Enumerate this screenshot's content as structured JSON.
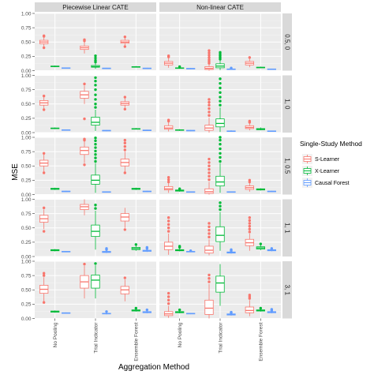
{
  "chart_data": {
    "type": "boxplot",
    "xlabel": "Aggregation Method",
    "ylabel": "MSE",
    "ylim": [
      0,
      1
    ],
    "yticks": [
      "0.00",
      "0.25",
      "0.50",
      "0.75",
      "1.00"
    ],
    "grid": true,
    "legend_placement": "right",
    "columns": [
      "Piecewise Linear CATE",
      "Non-linear CATE"
    ],
    "rows": [
      "0.5_0",
      "1_0",
      "1_0.5",
      "1_1",
      "3_1"
    ],
    "row_labels": [
      "0.5, 0",
      "1, 0",
      "1, 0.5",
      "1, 1",
      "3, 1"
    ],
    "categories": [
      "No Pooling",
      "Trial Indicator",
      "Ensemble Forest"
    ],
    "legend": {
      "title": "Single-Study Method",
      "entries": [
        {
          "name": "S-Learner",
          "color": "#F8766D"
        },
        {
          "name": "X-Learner",
          "color": "#00BA38"
        },
        {
          "name": "Causal Forest",
          "color": "#619CFF"
        }
      ]
    },
    "panels": [
      {
        "col": 0,
        "row": 0,
        "boxes": [
          [
            0.47,
            0.5,
            0.53,
            0.42,
            0.58,
            [
              0.4,
              0.6,
              0.61
            ]
          ],
          [
            0.07,
            0.075,
            0.08,
            0.06,
            0.09,
            []
          ],
          [
            0.04,
            0.045,
            0.05,
            0.035,
            0.055,
            []
          ],
          [
            0.37,
            0.4,
            0.43,
            0.3,
            0.5,
            [
              0.52,
              0.54
            ]
          ],
          [
            0.06,
            0.07,
            0.09,
            0.03,
            0.13,
            [
              0.15,
              0.18,
              0.22,
              0.26
            ]
          ],
          [
            0.035,
            0.04,
            0.045,
            0.03,
            0.05,
            []
          ],
          [
            0.48,
            0.5,
            0.53,
            0.44,
            0.57,
            [
              0.42,
              0.59
            ]
          ],
          [
            0.06,
            0.065,
            0.07,
            0.055,
            0.08,
            []
          ],
          [
            0.035,
            0.04,
            0.045,
            0.03,
            0.05,
            []
          ]
        ]
      },
      {
        "col": 1,
        "row": 0,
        "boxes": [
          [
            0.1,
            0.13,
            0.16,
            0.05,
            0.22,
            [
              0.24,
              0.26
            ]
          ],
          [
            0.04,
            0.045,
            0.05,
            0.03,
            0.06,
            [
              0.07
            ]
          ],
          [
            0.03,
            0.035,
            0.04,
            0.025,
            0.045,
            []
          ],
          [
            0.02,
            0.04,
            0.07,
            0.0,
            0.11,
            [
              0.13,
              0.16,
              0.19,
              0.23,
              0.27,
              0.31,
              0.35
            ]
          ],
          [
            0.05,
            0.08,
            0.12,
            0.01,
            0.18,
            [
              0.2,
              0.23,
              0.26,
              0.29,
              0.32
            ]
          ],
          [
            0.02,
            0.025,
            0.03,
            0.015,
            0.04,
            [
              0.045
            ]
          ],
          [
            0.1,
            0.13,
            0.16,
            0.06,
            0.21,
            [
              0.23
            ]
          ],
          [
            0.05,
            0.055,
            0.06,
            0.045,
            0.07,
            []
          ],
          [
            0.02,
            0.025,
            0.03,
            0.015,
            0.035,
            []
          ]
        ]
      },
      {
        "col": 0,
        "row": 1,
        "boxes": [
          [
            0.48,
            0.52,
            0.56,
            0.42,
            0.62,
            [
              0.4,
              0.64
            ]
          ],
          [
            0.07,
            0.075,
            0.08,
            0.06,
            0.09,
            []
          ],
          [
            0.04,
            0.045,
            0.05,
            0.035,
            0.055,
            []
          ],
          [
            0.6,
            0.66,
            0.72,
            0.5,
            0.82,
            [
              0.24,
              0.85
            ]
          ],
          [
            0.13,
            0.18,
            0.27,
            0.03,
            0.4,
            [
              0.44,
              0.5,
              0.58,
              0.66,
              0.75,
              0.83,
              0.9,
              0.96
            ]
          ],
          [
            0.03,
            0.035,
            0.04,
            0.025,
            0.045,
            []
          ],
          [
            0.48,
            0.51,
            0.54,
            0.43,
            0.6,
            [
              0.41,
              0.62
            ]
          ],
          [
            0.06,
            0.065,
            0.07,
            0.055,
            0.08,
            []
          ],
          [
            0.035,
            0.04,
            0.045,
            0.03,
            0.05,
            []
          ]
        ]
      },
      {
        "col": 1,
        "row": 1,
        "boxes": [
          [
            0.06,
            0.08,
            0.12,
            0.02,
            0.18,
            [
              0.2,
              0.22
            ]
          ],
          [
            0.04,
            0.045,
            0.05,
            0.03,
            0.06,
            []
          ],
          [
            0.03,
            0.035,
            0.04,
            0.025,
            0.045,
            []
          ],
          [
            0.04,
            0.08,
            0.13,
            0.0,
            0.26,
            [
              0.3,
              0.36,
              0.42,
              0.48,
              0.53,
              0.58
            ]
          ],
          [
            0.1,
            0.16,
            0.24,
            0.01,
            0.44,
            [
              0.48,
              0.55,
              0.62,
              0.7,
              0.78,
              0.86,
              0.94
            ]
          ],
          [
            0.02,
            0.025,
            0.03,
            0.015,
            0.04,
            []
          ],
          [
            0.07,
            0.09,
            0.12,
            0.04,
            0.16,
            [
              0.18,
              0.2
            ]
          ],
          [
            0.05,
            0.06,
            0.07,
            0.04,
            0.09,
            []
          ],
          [
            0.02,
            0.025,
            0.03,
            0.015,
            0.035,
            []
          ]
        ]
      },
      {
        "col": 0,
        "row": 2,
        "boxes": [
          [
            0.5,
            0.55,
            0.6,
            0.4,
            0.7,
            [
              0.38,
              0.72
            ]
          ],
          [
            0.09,
            0.1,
            0.11,
            0.08,
            0.12,
            []
          ],
          [
            0.05,
            0.055,
            0.06,
            0.045,
            0.065,
            []
          ],
          [
            0.7,
            0.77,
            0.83,
            0.55,
            0.93,
            [
              0.52,
              0.95,
              0.97
            ]
          ],
          [
            0.18,
            0.25,
            0.34,
            0.03,
            0.55,
            [
              0.58,
              0.64,
              0.7,
              0.76,
              0.82,
              0.88,
              0.94,
              0.99
            ]
          ],
          [
            0.04,
            0.045,
            0.05,
            0.035,
            0.055,
            []
          ],
          [
            0.5,
            0.56,
            0.62,
            0.4,
            0.75,
            [
              0.38,
              0.78,
              0.84,
              0.9,
              0.95
            ]
          ],
          [
            0.09,
            0.1,
            0.11,
            0.08,
            0.12,
            []
          ],
          [
            0.05,
            0.055,
            0.06,
            0.045,
            0.065,
            []
          ]
        ]
      },
      {
        "col": 1,
        "row": 2,
        "boxes": [
          [
            0.08,
            0.1,
            0.14,
            0.03,
            0.2,
            [
              0.22,
              0.26,
              0.3
            ]
          ],
          [
            0.06,
            0.07,
            0.08,
            0.05,
            0.09,
            [
              0.1
            ]
          ],
          [
            0.04,
            0.045,
            0.05,
            0.035,
            0.055,
            []
          ],
          [
            0.02,
            0.05,
            0.1,
            0.0,
            0.22,
            [
              0.26,
              0.32,
              0.38,
              0.44,
              0.5,
              0.56,
              0.62
            ]
          ],
          [
            0.15,
            0.22,
            0.32,
            0.03,
            0.55,
            [
              0.58,
              0.65,
              0.72,
              0.8,
              0.88,
              0.95,
              1.0
            ]
          ],
          [
            0.04,
            0.045,
            0.05,
            0.035,
            0.055,
            []
          ],
          [
            0.09,
            0.12,
            0.15,
            0.05,
            0.2,
            [
              0.22,
              0.25
            ]
          ],
          [
            0.08,
            0.09,
            0.1,
            0.07,
            0.11,
            []
          ],
          [
            0.05,
            0.055,
            0.06,
            0.045,
            0.065,
            []
          ]
        ]
      },
      {
        "col": 0,
        "row": 3,
        "boxes": [
          [
            0.6,
            0.66,
            0.72,
            0.48,
            0.82,
            [
              0.44,
              0.85
            ]
          ],
          [
            0.1,
            0.11,
            0.12,
            0.09,
            0.13,
            []
          ],
          [
            0.08,
            0.085,
            0.09,
            0.075,
            0.095,
            []
          ],
          [
            0.82,
            0.87,
            0.91,
            0.72,
            1.0,
            []
          ],
          [
            0.35,
            0.44,
            0.55,
            0.12,
            0.8,
            [
              0.84,
              0.9
            ]
          ],
          [
            0.07,
            0.08,
            0.09,
            0.06,
            0.1,
            [
              0.12,
              0.14
            ]
          ],
          [
            0.62,
            0.69,
            0.75,
            0.5,
            0.85,
            [
              0.47
            ]
          ],
          [
            0.12,
            0.14,
            0.16,
            0.1,
            0.19,
            [
              0.21
            ]
          ],
          [
            0.09,
            0.1,
            0.11,
            0.08,
            0.12,
            [
              0.14,
              0.16
            ]
          ]
        ]
      },
      {
        "col": 1,
        "row": 3,
        "boxes": [
          [
            0.12,
            0.18,
            0.25,
            0.03,
            0.4,
            [
              0.44,
              0.5,
              0.56,
              0.62,
              0.68
            ]
          ],
          [
            0.1,
            0.11,
            0.12,
            0.09,
            0.14,
            [
              0.16,
              0.18
            ]
          ],
          [
            0.08,
            0.085,
            0.09,
            0.075,
            0.095,
            [
              0.1
            ]
          ],
          [
            0.06,
            0.11,
            0.18,
            0.02,
            0.3,
            [
              0.34,
              0.4,
              0.46,
              0.52,
              0.58
            ]
          ],
          [
            0.26,
            0.37,
            0.52,
            0.1,
            0.78,
            [
              0.82,
              0.88,
              0.94
            ]
          ],
          [
            0.06,
            0.07,
            0.08,
            0.05,
            0.09,
            [
              0.1,
              0.12
            ]
          ],
          [
            0.19,
            0.24,
            0.3,
            0.1,
            0.4,
            [
              0.43,
              0.48,
              0.53,
              0.58,
              0.63,
              0.68
            ]
          ],
          [
            0.13,
            0.15,
            0.17,
            0.11,
            0.2,
            [
              0.22
            ]
          ],
          [
            0.1,
            0.11,
            0.12,
            0.09,
            0.13,
            [
              0.14
            ]
          ]
        ]
      },
      {
        "col": 0,
        "row": 4,
        "boxes": [
          [
            0.44,
            0.51,
            0.58,
            0.3,
            0.72,
            [
              0.28,
              0.75,
              0.79
            ]
          ],
          [
            0.11,
            0.12,
            0.13,
            0.1,
            0.14,
            []
          ],
          [
            0.09,
            0.095,
            0.1,
            0.085,
            0.105,
            []
          ],
          [
            0.53,
            0.64,
            0.75,
            0.35,
            0.92,
            [
              0.95
            ]
          ],
          [
            0.53,
            0.67,
            0.76,
            0.35,
            0.93,
            [
              0.96
            ]
          ],
          [
            0.08,
            0.085,
            0.09,
            0.07,
            0.1,
            [
              0.12
            ]
          ],
          [
            0.43,
            0.5,
            0.56,
            0.3,
            0.68,
            [
              0.71
            ]
          ],
          [
            0.13,
            0.14,
            0.15,
            0.12,
            0.16,
            [
              0.18
            ]
          ],
          [
            0.1,
            0.11,
            0.12,
            0.09,
            0.13,
            [
              0.15
            ]
          ]
        ]
      },
      {
        "col": 1,
        "row": 4,
        "boxes": [
          [
            0.05,
            0.08,
            0.12,
            0.01,
            0.22,
            [
              0.26,
              0.32,
              0.38,
              0.44
            ]
          ],
          [
            0.1,
            0.11,
            0.12,
            0.09,
            0.13,
            [
              0.15
            ]
          ],
          [
            0.08,
            0.085,
            0.09,
            0.075,
            0.095,
            []
          ],
          [
            0.07,
            0.18,
            0.32,
            0.0,
            0.6,
            [
              0.64,
              0.7,
              0.76
            ]
          ],
          [
            0.46,
            0.62,
            0.74,
            0.22,
            0.95,
            []
          ],
          [
            0.06,
            0.07,
            0.08,
            0.05,
            0.09,
            [
              0.1,
              0.11
            ]
          ],
          [
            0.1,
            0.14,
            0.2,
            0.04,
            0.32,
            [
              0.35,
              0.38,
              0.41
            ]
          ],
          [
            0.13,
            0.14,
            0.15,
            0.12,
            0.16,
            [
              0.18
            ]
          ],
          [
            0.1,
            0.11,
            0.12,
            0.09,
            0.13,
            [
              0.14,
              0.16
            ]
          ]
        ]
      }
    ]
  }
}
